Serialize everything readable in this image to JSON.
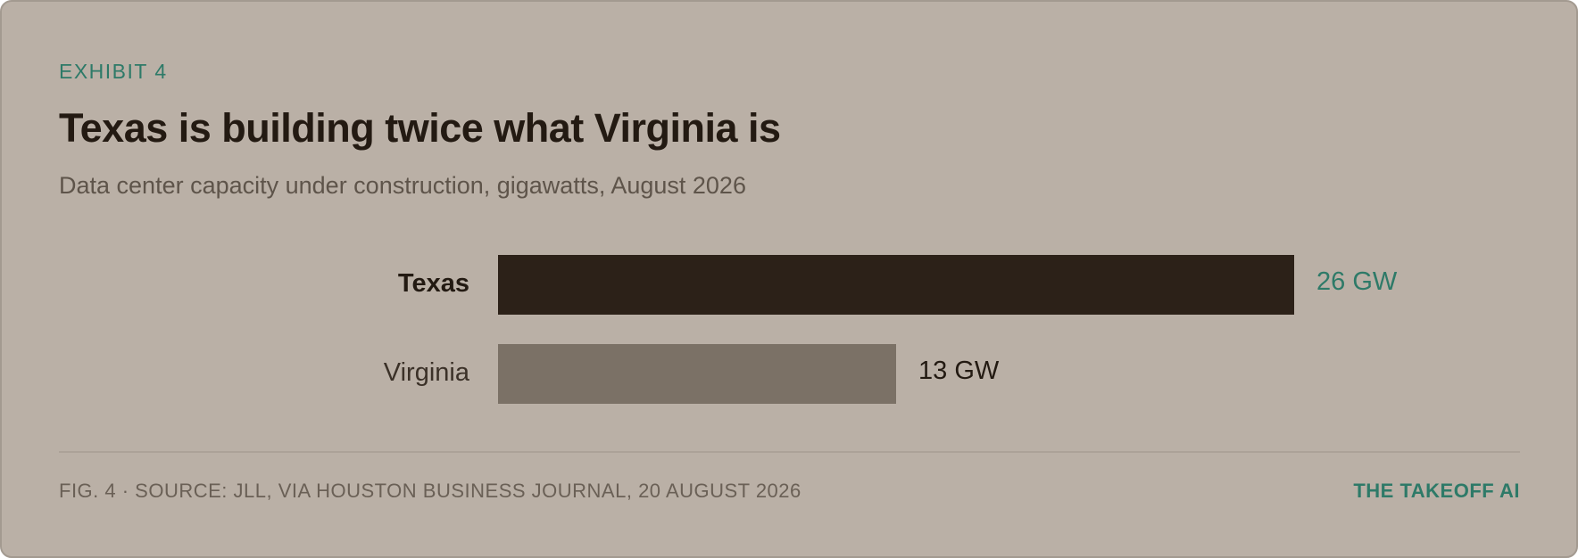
{
  "chart_data": {
    "type": "bar",
    "eyebrow": "EXHIBIT 4",
    "title": "Texas is building twice what Virginia is",
    "subtitle": "Data center capacity under construction, gigawatts, August 2026",
    "categories": [
      "Texas",
      "Virginia"
    ],
    "values": [
      26,
      13
    ],
    "value_labels": [
      "26 GW",
      "13 GW"
    ],
    "colors": [
      "#2c2118",
      "#7b7166"
    ],
    "source": "FIG. 4 · SOURCE: JLL, VIA HOUSTON BUSINESS JOURNAL, 20 AUGUST 2026",
    "brand": "THE TAKEOFF AI"
  }
}
